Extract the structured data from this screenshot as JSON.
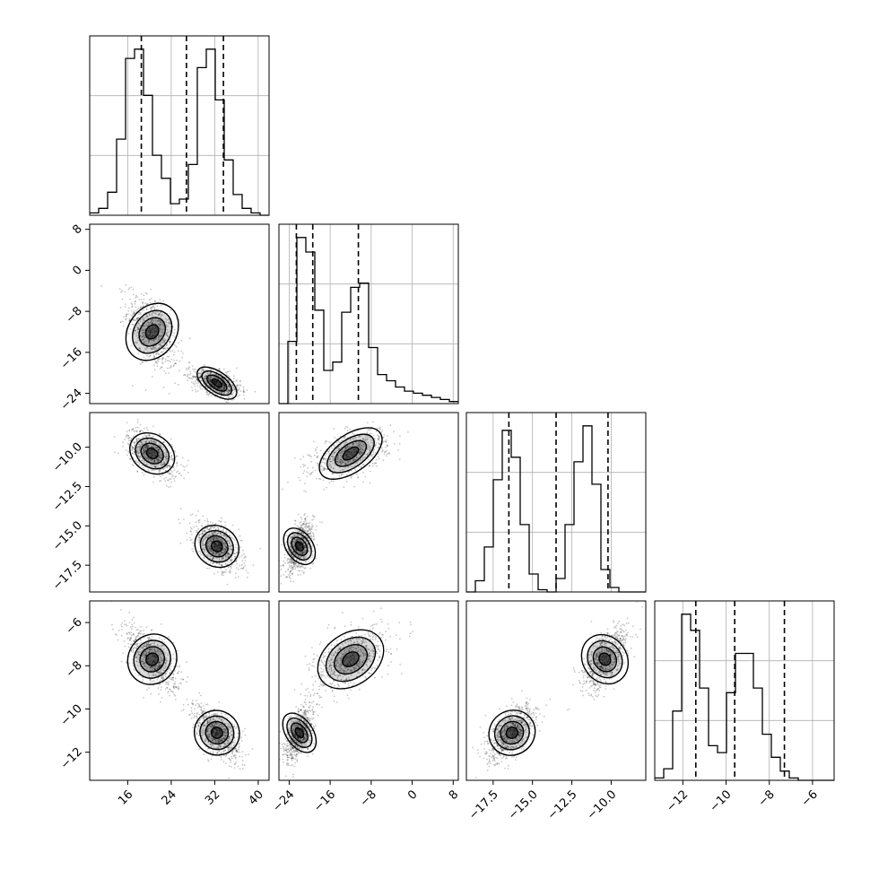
{
  "chart_data": {
    "type": "corner",
    "parameters": 4,
    "grid": true,
    "legend": "none",
    "axes": {
      "p0": {
        "range": [
          9,
          42
        ],
        "ticks": [
          "16",
          "24",
          "32",
          "40"
        ],
        "tick_values": [
          16,
          24,
          32,
          40
        ]
      },
      "p1": {
        "range": [
          -26,
          9
        ],
        "ticks": [
          "−24",
          "−16",
          "−8",
          "0",
          "8"
        ],
        "tick_values": [
          -24,
          -16,
          -8,
          0,
          8
        ]
      },
      "p2": {
        "range": [
          -19.2,
          -7.8
        ],
        "ticks": [
          "−17.5",
          "−15.0",
          "−12.5",
          "−10.0"
        ],
        "tick_values": [
          -17.5,
          -15.0,
          -12.5,
          -10.0
        ]
      },
      "p3": {
        "range": [
          -13.3,
          -5.0
        ],
        "ticks": [
          "−12",
          "−10",
          "−8",
          "−6"
        ],
        "tick_values": [
          -12,
          -10,
          -8,
          -6
        ]
      }
    },
    "quantiles": {
      "p0": [
        18.5,
        26.8,
        33.6
      ],
      "p1": [
        -22.6,
        -19.4,
        -10.5
      ],
      "p2": [
        -16.5,
        -13.5,
        -10.2
      ],
      "p3": [
        -11.4,
        -9.6,
        -7.3
      ]
    },
    "modes": [
      {
        "weight": 0.48,
        "mean": [
          20.5,
          -12.0,
          -10.4,
          -7.7
        ],
        "sd": [
          2.2,
          3.5,
          0.7,
          0.7
        ]
      },
      {
        "weight": 0.52,
        "mean": [
          32.4,
          -22.0,
          -16.3,
          -11.1
        ],
        "sd": [
          2.1,
          1.3,
          0.75,
          0.6
        ]
      }
    ],
    "histograms": {
      "p0": {
        "bins": 20,
        "counts": [
          1,
          3,
          10,
          33,
          68,
          72,
          52,
          26,
          16,
          5,
          7,
          22,
          64,
          72,
          50,
          24,
          9,
          3,
          1,
          0
        ]
      },
      "p1": {
        "bins": 20,
        "counts": [
          0,
          30,
          80,
          73,
          45,
          16,
          20,
          44,
          56,
          58,
          27,
          14,
          11,
          8,
          6,
          5,
          4,
          3,
          2,
          1
        ]
      },
      "p2": {
        "bins": 20,
        "counts": [
          0,
          5,
          20,
          50,
          72,
          60,
          30,
          8,
          1,
          0,
          6,
          30,
          58,
          74,
          48,
          10,
          2,
          0,
          0,
          0
        ]
      },
      "p3": {
        "bins": 20,
        "counts": [
          1,
          5,
          30,
          72,
          65,
          40,
          15,
          12,
          38,
          55,
          55,
          40,
          20,
          10,
          4,
          1,
          0,
          0,
          0,
          0
        ]
      }
    }
  }
}
